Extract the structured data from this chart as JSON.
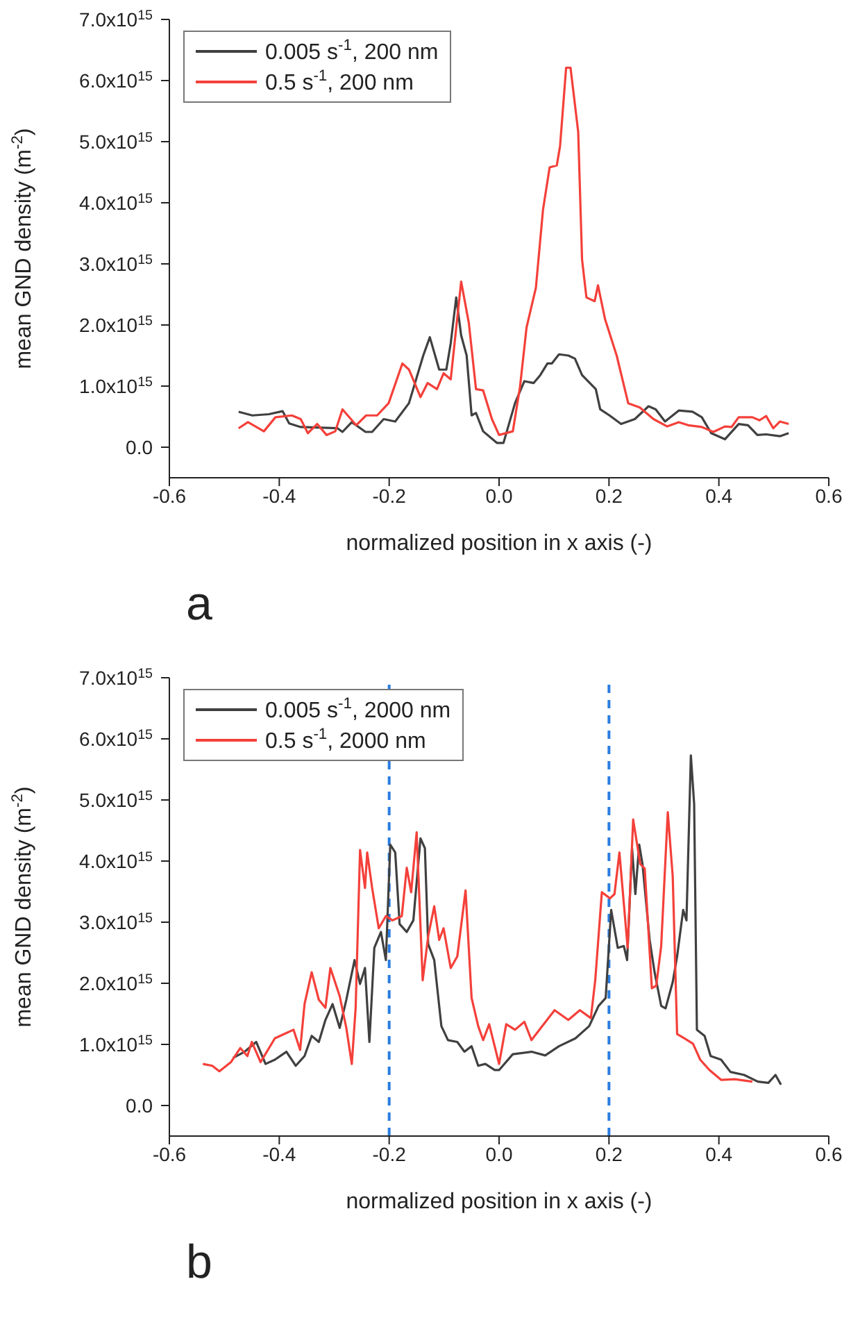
{
  "chart_data": [
    {
      "type": "line",
      "xlabel": "normalized position in x axis (-)",
      "ylabel": "mean GND density (m$^{-2}$)",
      "annotations": [
        "a"
      ],
      "legend": "top left",
      "xlim": [
        -0.6,
        0.6
      ],
      "xticks": [
        -0.6,
        -0.4,
        -0.2,
        {
          "value": 0,
          "label": "0.0"
        },
        0.2,
        0.4,
        0.6
      ],
      "ylim": [
        -500000000000000.0,
        7000000000000000.0
      ],
      "yticks": [
        {
          "value": 0,
          "label": "0.0"
        },
        {
          "value": 1000000000000000.0,
          "label": "1.0x10$^{15}$"
        },
        {
          "value": 2000000000000000.0,
          "label": "2.0x10$^{15}$"
        },
        {
          "value": 3000000000000000.0,
          "label": "3.0x10$^{15}$"
        },
        {
          "value": 4000000000000000.0,
          "label": "4.0x10$^{15}$"
        },
        {
          "value": 5000000000000000.0,
          "label": "5.0x10$^{15}$"
        },
        {
          "value": 6000000000000000.0,
          "label": "6.0x10$^{15}$"
        },
        {
          "value": 7000000000000000.0,
          "label": "7.0x10$^{15}$"
        }
      ],
      "series": [
        {
          "name": "0.005 s$^{-1}$, 200 nm",
          "color": "#404040",
          "x": [
            -0.474,
            -0.449,
            -0.419,
            -0.394,
            -0.382,
            -0.361,
            -0.294,
            -0.285,
            -0.268,
            -0.243,
            -0.231,
            -0.21,
            -0.189,
            -0.164,
            -0.138,
            -0.126,
            -0.109,
            -0.096,
            -0.088,
            -0.078,
            -0.069,
            -0.059,
            -0.05,
            -0.042,
            -0.029,
            -0.004,
            0.008,
            0.029,
            0.046,
            0.063,
            0.075,
            0.088,
            0.096,
            0.109,
            0.126,
            0.138,
            0.151,
            0.176,
            0.184,
            0.201,
            0.222,
            0.247,
            0.272,
            0.285,
            0.302,
            0.327,
            0.352,
            0.369,
            0.386,
            0.411,
            0.436,
            0.453,
            0.47,
            0.486,
            0.511,
            0.527
          ],
          "values": [
            580000000000000.0,
            520000000000000.0,
            540000000000000.0,
            590000000000000.0,
            390000000000000.0,
            330000000000000.0,
            310000000000000.0,
            250000000000000.0,
            410000000000000.0,
            250000000000000.0,
            250000000000000.0,
            460000000000000.0,
            420000000000000.0,
            720000000000000.0,
            1500000000000000.0,
            1800000000000000.0,
            1270000000000000.0,
            1270000000000000.0,
            1700000000000000.0,
            2450000000000000.0,
            1830000000000000.0,
            1500000000000000.0,
            520000000000000.0,
            560000000000000.0,
            260000000000000.0,
            70000000000000.0,
            70000000000000.0,
            720000000000000.0,
            1080000000000000.0,
            1050000000000000.0,
            1180000000000000.0,
            1370000000000000.0,
            1370000000000000.0,
            1520000000000000.0,
            1500000000000000.0,
            1450000000000000.0,
            1180000000000000.0,
            950000000000000.0,
            620000000000000.0,
            520000000000000.0,
            380000000000000.0,
            460000000000000.0,
            670000000000000.0,
            620000000000000.0,
            420000000000000.0,
            600000000000000.0,
            580000000000000.0,
            490000000000000.0,
            230000000000000.0,
            130000000000000.0,
            380000000000000.0,
            360000000000000.0,
            200000000000000.0,
            210000000000000.0,
            180000000000000.0,
            230000000000000.0
          ]
        },
        {
          "name": "0.5 s$^{-1}$, 200 nm",
          "color": "#f4403a",
          "x": [
            -0.474,
            -0.457,
            -0.428,
            -0.407,
            -0.377,
            -0.361,
            -0.348,
            -0.331,
            -0.314,
            -0.298,
            -0.285,
            -0.26,
            -0.242,
            -0.222,
            -0.201,
            -0.176,
            -0.164,
            -0.143,
            -0.13,
            -0.113,
            -0.101,
            -0.088,
            -0.069,
            -0.055,
            -0.042,
            -0.029,
            -0.013,
            0.0,
            0.025,
            0.038,
            0.05,
            0.067,
            0.08,
            0.092,
            0.105,
            0.111,
            0.122,
            0.13,
            0.144,
            0.151,
            0.159,
            0.174,
            0.18,
            0.193,
            0.214,
            0.235,
            0.256,
            0.281,
            0.306,
            0.327,
            0.344,
            0.369,
            0.39,
            0.411,
            0.423,
            0.436,
            0.461,
            0.474,
            0.486,
            0.499,
            0.511,
            0.527
          ],
          "values": [
            310000000000000.0,
            410000000000000.0,
            260000000000000.0,
            490000000000000.0,
            520000000000000.0,
            460000000000000.0,
            230000000000000.0,
            380000000000000.0,
            200000000000000.0,
            260000000000000.0,
            620000000000000.0,
            360000000000000.0,
            520000000000000.0,
            520000000000000.0,
            720000000000000.0,
            1370000000000000.0,
            1270000000000000.0,
            820000000000000.0,
            1050000000000000.0,
            950000000000000.0,
            1210000000000000.0,
            1110000000000000.0,
            2710000000000000.0,
            2030000000000000.0,
            950000000000000.0,
            930000000000000.0,
            460000000000000.0,
            200000000000000.0,
            260000000000000.0,
            980000000000000.0,
            1960000000000000.0,
            2610000000000000.0,
            3890000000000000.0,
            4580000000000000.0,
            4610000000000000.0,
            4930000000000000.0,
            6210000000000000.0,
            6210000000000000.0,
            5160000000000000.0,
            3070000000000000.0,
            2450000000000000.0,
            2390000000000000.0,
            2650000000000000.0,
            2090000000000000.0,
            1500000000000000.0,
            720000000000000.0,
            650000000000000.0,
            460000000000000.0,
            340000000000000.0,
            410000000000000.0,
            360000000000000.0,
            330000000000000.0,
            250000000000000.0,
            340000000000000.0,
            330000000000000.0,
            490000000000000.0,
            490000000000000.0,
            440000000000000.0,
            510000000000000.0,
            310000000000000.0,
            420000000000000.0,
            380000000000000.0
          ]
        }
      ]
    },
    {
      "type": "line",
      "xlabel": "normalized position in x axis (-)",
      "ylabel": "mean GND density (m$^{-2}$)",
      "annotations": [
        "b"
      ],
      "legend": "top left",
      "xlim": [
        -0.6,
        0.6
      ],
      "xticks": [
        -0.6,
        -0.4,
        -0.2,
        {
          "value": 0,
          "label": "0.0"
        },
        0.2,
        0.4,
        0.6
      ],
      "ylim": [
        -500000000000000.0,
        7000000000000000.0
      ],
      "yticks": [
        {
          "value": 0,
          "label": "0.0"
        },
        {
          "value": 1000000000000000.0,
          "label": "1.0x10$^{15}$"
        },
        {
          "value": 2000000000000000.0,
          "label": "2.0x10$^{15}$"
        },
        {
          "value": 3000000000000000.0,
          "label": "3.0x10$^{15}$"
        },
        {
          "value": 4000000000000000.0,
          "label": "4.0x10$^{15}$"
        },
        {
          "value": 5000000000000000.0,
          "label": "5.0x10$^{15}$"
        },
        {
          "value": 6000000000000000.0,
          "label": "6.0x10$^{15}$"
        },
        {
          "value": 7000000000000000.0,
          "label": "7.0x10$^{15}$"
        }
      ],
      "ref_lines": [
        {
          "axis": "x",
          "value": -0.2,
          "color": "#2a7de1",
          "line_style": "dashed"
        },
        {
          "axis": "x",
          "value": 0.2,
          "color": "#2a7de1",
          "line_style": "dashed"
        }
      ],
      "series": [
        {
          "name": "0.005 s$^{-1}$, 2000 nm",
          "color": "#404040",
          "x": [
            -0.484,
            -0.463,
            -0.442,
            -0.425,
            -0.408,
            -0.387,
            -0.37,
            -0.354,
            -0.341,
            -0.328,
            -0.316,
            -0.303,
            -0.29,
            -0.278,
            -0.263,
            -0.253,
            -0.244,
            -0.236,
            -0.227,
            -0.215,
            -0.206,
            -0.198,
            -0.189,
            -0.181,
            -0.168,
            -0.156,
            -0.143,
            -0.135,
            -0.129,
            -0.118,
            -0.105,
            -0.093,
            -0.076,
            -0.063,
            -0.05,
            -0.038,
            -0.025,
            -0.008,
            0.0,
            0.025,
            0.059,
            0.084,
            0.109,
            0.139,
            0.164,
            0.181,
            0.194,
            0.204,
            0.216,
            0.227,
            0.233,
            0.242,
            0.248,
            0.255,
            0.261,
            0.274,
            0.283,
            0.295,
            0.303,
            0.316,
            0.324,
            0.335,
            0.341,
            0.349,
            0.355,
            0.36,
            0.374,
            0.385,
            0.404,
            0.421,
            0.446,
            0.471,
            0.49,
            0.503,
            0.513
          ],
          "values": [
            780000000000000.0,
            880000000000000.0,
            1040000000000000.0,
            680000000000000.0,
            750000000000000.0,
            880000000000000.0,
            650000000000000.0,
            810000000000000.0,
            1140000000000000.0,
            1040000000000000.0,
            1400000000000000.0,
            1660000000000000.0,
            1270000000000000.0,
            1730000000000000.0,
            2380000000000000.0,
            1990000000000000.0,
            2250000000000000.0,
            1040000000000000.0,
            2580000000000000.0,
            2840000000000000.0,
            2380000000000000.0,
            4270000000000000.0,
            4140000000000000.0,
            2970000000000000.0,
            2840000000000000.0,
            3030000000000000.0,
            4370000000000000.0,
            4210000000000000.0,
            2640000000000000.0,
            2380000000000000.0,
            1300000000000000.0,
            1070000000000000.0,
            1040000000000000.0,
            880000000000000.0,
            970000000000000.0,
            650000000000000.0,
            680000000000000.0,
            580000000000000.0,
            580000000000000.0,
            840000000000000.0,
            880000000000000.0,
            820000000000000.0,
            970000000000000.0,
            1100000000000000.0,
            1300000000000000.0,
            1630000000000000.0,
            1760000000000000.0,
            3200000000000000.0,
            2580000000000000.0,
            2610000000000000.0,
            2380000000000000.0,
            4210000000000000.0,
            3460000000000000.0,
            4270000000000000.0,
            3950000000000000.0,
            2710000000000000.0,
            2180000000000000.0,
            1630000000000000.0,
            1590000000000000.0,
            2020000000000000.0,
            2440000000000000.0,
            3200000000000000.0,
            3030000000000000.0,
            5730000000000000.0,
            4930000000000000.0,
            1240000000000000.0,
            1140000000000000.0,
            810000000000000.0,
            750000000000000.0,
            550000000000000.0,
            500000000000000.0,
            390000000000000.0,
            370000000000000.0,
            500000000000000.0,
            340000000000000.0
          ]
        },
        {
          "name": "0.5 s$^{-1}$, 2000 nm",
          "color": "#f4403a",
          "x": [
            -0.539,
            -0.522,
            -0.509,
            -0.488,
            -0.471,
            -0.458,
            -0.45,
            -0.434,
            -0.408,
            -0.391,
            -0.374,
            -0.362,
            -0.354,
            -0.341,
            -0.328,
            -0.316,
            -0.307,
            -0.29,
            -0.278,
            -0.268,
            -0.261,
            -0.253,
            -0.244,
            -0.24,
            -0.231,
            -0.219,
            -0.206,
            -0.194,
            -0.177,
            -0.168,
            -0.16,
            -0.15,
            -0.139,
            -0.129,
            -0.118,
            -0.109,
            -0.101,
            -0.088,
            -0.076,
            -0.061,
            -0.05,
            -0.038,
            -0.029,
            -0.018,
            0.0,
            0.013,
            0.029,
            0.046,
            0.059,
            0.076,
            0.101,
            0.126,
            0.147,
            0.167,
            0.175,
            0.187,
            0.202,
            0.21,
            0.219,
            0.234,
            0.244,
            0.257,
            0.265,
            0.278,
            0.286,
            0.295,
            0.307,
            0.316,
            0.324,
            0.337,
            0.353,
            0.366,
            0.383,
            0.404,
            0.429,
            0.461
          ],
          "values": [
            680000000000000.0,
            650000000000000.0,
            560000000000000.0,
            710000000000000.0,
            940000000000000.0,
            810000000000000.0,
            1040000000000000.0,
            710000000000000.0,
            1100000000000000.0,
            1170000000000000.0,
            1240000000000000.0,
            910000000000000.0,
            1660000000000000.0,
            2180000000000000.0,
            1730000000000000.0,
            1600000000000000.0,
            2250000000000000.0,
            1790000000000000.0,
            1270000000000000.0,
            680000000000000.0,
            1600000000000000.0,
            4180000000000000.0,
            3560000000000000.0,
            4140000000000000.0,
            3560000000000000.0,
            2900000000000000.0,
            3100000000000000.0,
            3030000000000000.0,
            3100000000000000.0,
            3890000000000000.0,
            3490000000000000.0,
            4470000000000000.0,
            2050000000000000.0,
            2770000000000000.0,
            3260000000000000.0,
            2710000000000000.0,
            2900000000000000.0,
            2250000000000000.0,
            2440000000000000.0,
            3520000000000000.0,
            1760000000000000.0,
            1300000000000000.0,
            1070000000000000.0,
            1330000000000000.0,
            680000000000000.0,
            1330000000000000.0,
            1240000000000000.0,
            1370000000000000.0,
            1070000000000000.0,
            1270000000000000.0,
            1560000000000000.0,
            1400000000000000.0,
            1560000000000000.0,
            1430000000000000.0,
            2050000000000000.0,
            3490000000000000.0,
            3390000000000000.0,
            3460000000000000.0,
            4140000000000000.0,
            2580000000000000.0,
            4680000000000000.0,
            3950000000000000.0,
            3880000000000000.0,
            1920000000000000.0,
            1960000000000000.0,
            2610000000000000.0,
            4800000000000000.0,
            3750000000000000.0,
            1170000000000000.0,
            1100000000000000.0,
            1010000000000000.0,
            750000000000000.0,
            580000000000000.0,
            420000000000000.0,
            430000000000000.0,
            390000000000000.0
          ]
        }
      ]
    }
  ]
}
